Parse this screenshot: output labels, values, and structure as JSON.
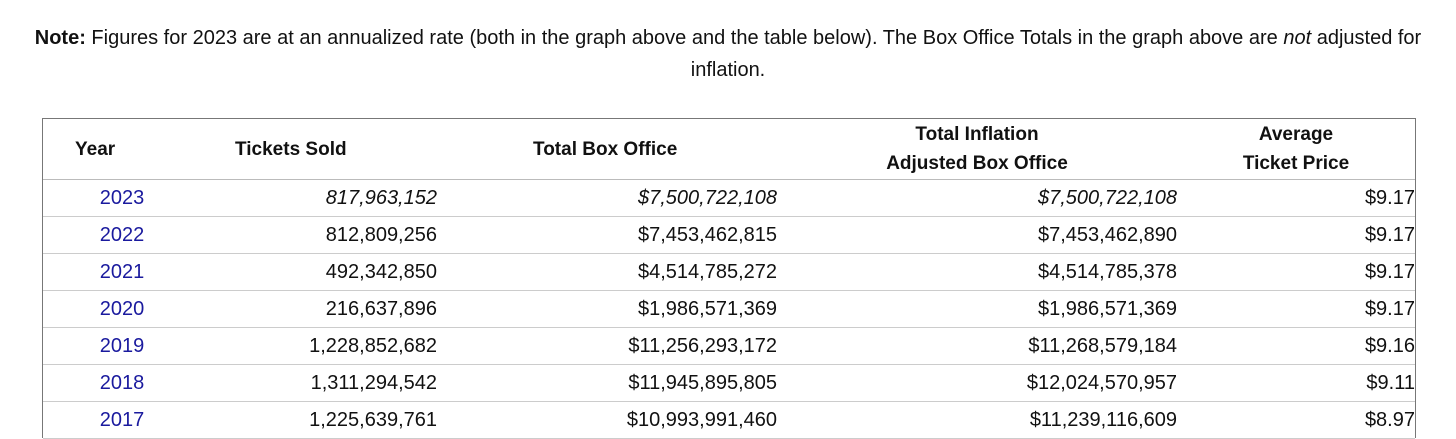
{
  "note": {
    "label": "Note:",
    "text_before_emphasis": " Figures for 2023 are at an annualized rate (both in the graph above and the table below). The Box Office Totals in the graph above are ",
    "emphasis": "not",
    "text_after_emphasis": " adjusted for inflation."
  },
  "table": {
    "headers": {
      "year": "Year",
      "tickets_sold": "Tickets Sold",
      "total_box_office": "Total Box Office",
      "inflation_adjusted_line1": "Total Inflation",
      "inflation_adjusted_line2": "Adjusted Box Office",
      "avg_price_line1": "Average",
      "avg_price_line2": "Ticket Price"
    },
    "rows": [
      {
        "year": "2023",
        "tickets_sold": "817,963,152",
        "total_box_office": "$7,500,722,108",
        "inflation_adjusted": "$7,500,722,108",
        "avg_price": "$9.17"
      },
      {
        "year": "2022",
        "tickets_sold": "812,809,256",
        "total_box_office": "$7,453,462,815",
        "inflation_adjusted": "$7,453,462,890",
        "avg_price": "$9.17"
      },
      {
        "year": "2021",
        "tickets_sold": "492,342,850",
        "total_box_office": "$4,514,785,272",
        "inflation_adjusted": "$4,514,785,378",
        "avg_price": "$9.17"
      },
      {
        "year": "2020",
        "tickets_sold": "216,637,896",
        "total_box_office": "$1,986,571,369",
        "inflation_adjusted": "$1,986,571,369",
        "avg_price": "$9.17"
      },
      {
        "year": "2019",
        "tickets_sold": "1,228,852,682",
        "total_box_office": "$11,256,293,172",
        "inflation_adjusted": "$11,268,579,184",
        "avg_price": "$9.16"
      },
      {
        "year": "2018",
        "tickets_sold": "1,311,294,542",
        "total_box_office": "$11,945,895,805",
        "inflation_adjusted": "$12,024,570,957",
        "avg_price": "$9.11"
      },
      {
        "year": "2017",
        "tickets_sold": "1,225,639,761",
        "total_box_office": "$10,993,991,460",
        "inflation_adjusted": "$11,239,116,609",
        "avg_price": "$8.97"
      }
    ]
  },
  "colors": {
    "link": "#1a1a9e",
    "text": "#111111",
    "border": "#777777"
  }
}
